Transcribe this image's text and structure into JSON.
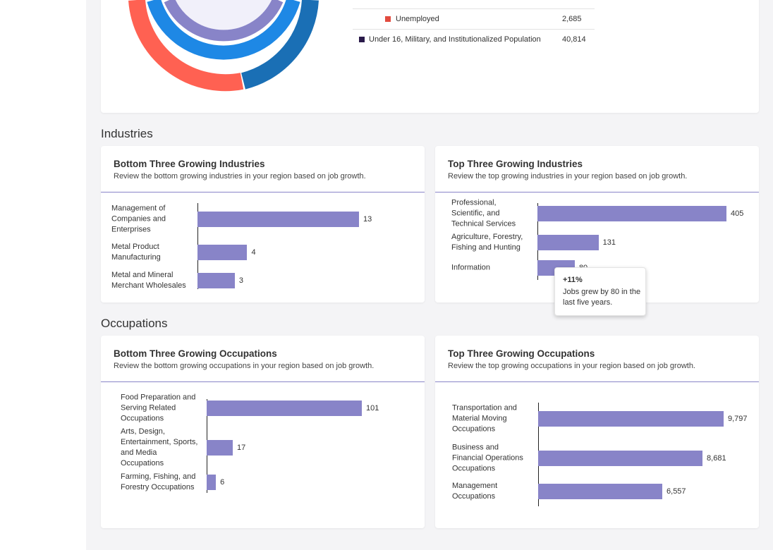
{
  "population_legend": {
    "rows": [
      {
        "label": "Unemployed",
        "value": "2,685"
      },
      {
        "label": "Under 16, Military, and Institutionalized Population",
        "value": "40,814"
      }
    ]
  },
  "sections": [
    {
      "title": "Industries",
      "cards": [
        {
          "title": "Bottom Three Growing Industries",
          "subtitle": "Review the bottom growing industries in your region based on job growth.",
          "chart_data": {
            "type": "bar",
            "categories": [
              "Management of Companies and Enterprises",
              "Metal Product Manufacturing",
              "Metal and Mineral Merchant Wholesales"
            ],
            "values": [
              13,
              4,
              3
            ],
            "color": "#8884c8"
          }
        },
        {
          "title": "Top Three Growing Industries",
          "subtitle": "Review the top growing industries in your region based on job growth.",
          "chart_data": {
            "type": "bar",
            "categories": [
              "Professional, Scientific, and Technical Services",
              "Agriculture, Forestry, Fishing and Hunting",
              "Information"
            ],
            "values": [
              405,
              131,
              80
            ],
            "color": "#8884c8"
          },
          "tooltip": {
            "title": "+11%",
            "text": "Jobs grew by 80 in the last five years."
          }
        }
      ]
    },
    {
      "title": "Occupations",
      "cards": [
        {
          "title": "Bottom Three Growing Occupations",
          "subtitle": "Review the bottom growing occupations in your region based on job growth.",
          "chart_data": {
            "type": "bar",
            "categories": [
              "Food Preparation and Serving Related Occupations",
              "Arts, Design, Entertainment, Sports, and Media Occupations",
              "Farming, Fishing, and Forestry Occupations"
            ],
            "values": [
              101,
              17,
              6
            ],
            "color": "#8884c8"
          }
        },
        {
          "title": "Top Three Growing Occupations",
          "subtitle": "Review the top growing occupations in your region based on job growth.",
          "chart_data": {
            "type": "bar",
            "categories": [
              "Transportation and Material Moving Occupations",
              "Business and Financial Operations Occupations",
              "Management Occupations"
            ],
            "values": [
              9797,
              8681,
              6557
            ],
            "value_labels": [
              "9,797",
              "8,681",
              "6,557"
            ],
            "color": "#8884c8"
          }
        }
      ]
    }
  ]
}
